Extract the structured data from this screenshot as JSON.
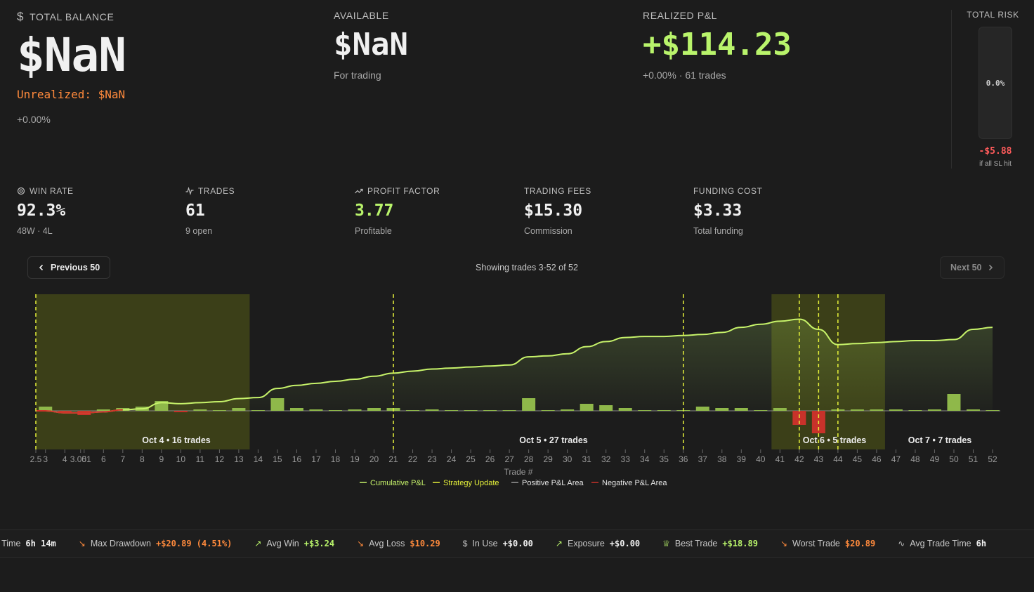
{
  "total_balance": {
    "label": "TOTAL BALANCE",
    "value": "$NaN",
    "unrealized": "Unrealized: $NaN",
    "change": "+0.00%"
  },
  "available": {
    "label": "AVAILABLE",
    "value": "$NaN",
    "sub": "For trading"
  },
  "realized": {
    "label": "REALIZED P&L",
    "value": "+$114.23",
    "sub": "+0.00% · 61 trades"
  },
  "risk": {
    "label": "TOTAL RISK",
    "percent": "0.0%",
    "sl_value": "-$5.88",
    "sl_hint": "if all SL hit"
  },
  "metrics": {
    "win_rate": {
      "label": "WIN RATE",
      "value": "92.3%",
      "sub": "48W · 4L"
    },
    "trades": {
      "label": "TRADES",
      "value": "61",
      "sub": "9 open"
    },
    "profit_factor": {
      "label": "PROFIT FACTOR",
      "value": "3.77",
      "sub": "Profitable"
    },
    "fees": {
      "label": "TRADING FEES",
      "value": "$15.30",
      "sub": "Commission"
    },
    "funding": {
      "label": "FUNDING COST",
      "value": "$3.33",
      "sub": "Total funding"
    }
  },
  "pager": {
    "prev": "Previous 50",
    "next": "Next 50",
    "showing": "Showing trades 3-52 of 52"
  },
  "colors": {
    "accent": "#b9f46b",
    "negative": "#ff5b5b",
    "warning": "#ff8a3c",
    "strategy": "#e6f23a"
  },
  "chart_data": {
    "type": "line",
    "xlabel": "Trade #",
    "x_ticks": [
      "2.5",
      "3",
      "3.001",
      "4",
      "5",
      "6",
      "7",
      "8",
      "9",
      "10",
      "11",
      "12",
      "13",
      "14",
      "15",
      "16",
      "17",
      "18",
      "19",
      "20",
      "21",
      "22",
      "23",
      "24",
      "25",
      "26",
      "27",
      "28",
      "29",
      "30",
      "31",
      "32",
      "33",
      "34",
      "35",
      "36",
      "37",
      "38",
      "39",
      "40",
      "41",
      "42",
      "43",
      "44",
      "45",
      "46",
      "47",
      "48",
      "49",
      "50",
      "51",
      "52"
    ],
    "legend": [
      "Cumulative P&L",
      "Strategy Update",
      "Positive P&L Area",
      "Negative P&L Area"
    ],
    "cumulative_pnl": {
      "x": [
        2.5,
        3,
        4,
        5,
        6,
        7,
        8,
        9,
        10,
        11,
        12,
        13,
        14,
        15,
        16,
        17,
        18,
        19,
        20,
        21,
        22,
        23,
        24,
        25,
        26,
        27,
        28,
        29,
        30,
        31,
        32,
        33,
        34,
        35,
        36,
        37,
        38,
        39,
        40,
        41,
        42,
        43,
        44,
        45,
        46,
        47,
        48,
        49,
        50,
        51,
        52
      ],
      "y": [
        0,
        0,
        -2,
        -2,
        -1,
        1,
        2,
        8,
        7,
        8,
        9,
        12,
        13,
        22,
        25,
        27,
        29,
        31,
        34,
        37,
        39,
        41,
        42,
        43,
        44,
        45,
        53,
        54,
        56,
        63,
        68,
        72,
        73,
        73,
        74,
        75,
        77,
        82,
        85,
        88,
        90,
        80,
        65,
        66,
        67,
        68,
        69,
        69,
        70,
        80,
        82
      ]
    },
    "trade_pnl": {
      "x": [
        3,
        4,
        5,
        6,
        7,
        8,
        9,
        10,
        11,
        12,
        13,
        14,
        15,
        16,
        17,
        18,
        19,
        20,
        21,
        22,
        23,
        24,
        25,
        26,
        27,
        28,
        29,
        30,
        31,
        32,
        33,
        34,
        35,
        36,
        37,
        38,
        39,
        40,
        41,
        42,
        43,
        44,
        45,
        46,
        47,
        48,
        49,
        50,
        51,
        52
      ],
      "y": [
        3,
        -1,
        -3,
        1,
        2,
        3,
        7,
        -1,
        1,
        0,
        2,
        0,
        9,
        2,
        1,
        0,
        1,
        2,
        2,
        0,
        1,
        0,
        0,
        0,
        0,
        9,
        0,
        1,
        5,
        4,
        2,
        0,
        0,
        0,
        3,
        2,
        2,
        0,
        2,
        -10,
        -16,
        1,
        1,
        1,
        1,
        0,
        1,
        12,
        1,
        0
      ]
    },
    "strategy_updates": [
      2.5,
      21,
      36,
      42,
      43,
      44
    ],
    "day_regions": [
      {
        "label": "Oct 4 • 16 trades",
        "from": 2.5,
        "to": 14,
        "highlight": true
      },
      {
        "label": "Oct 5 • 27 trades",
        "from": 14,
        "to": 41,
        "highlight": false
      },
      {
        "label": "Oct 6 • 5 trades",
        "from": 41,
        "to": 46,
        "highlight": true
      },
      {
        "label": "Oct 7 • 7 trades",
        "from": 46,
        "to": 52,
        "highlight": false
      }
    ]
  },
  "ticker": [
    {
      "icon": "clock-icon",
      "label": "Avg Trade Time",
      "value": "6h 14m",
      "tone": "neu",
      "clip": "ade Time"
    },
    {
      "icon": "trend-down-icon",
      "label": "Max Drawdown",
      "value": "+$20.89 (4.51%)",
      "tone": "neg"
    },
    {
      "icon": "trend-up-icon",
      "label": "Avg Win",
      "value": "+$3.24",
      "tone": "pos"
    },
    {
      "icon": "trend-down-icon",
      "label": "Avg Loss",
      "value": "$10.29",
      "tone": "neg"
    },
    {
      "icon": "dollar-icon",
      "label": "In Use",
      "value": "+$0.00",
      "tone": "neu"
    },
    {
      "icon": "trend-up-icon",
      "label": "Exposure",
      "value": "+$0.00",
      "tone": "neu"
    },
    {
      "icon": "trophy-icon",
      "label": "Best Trade",
      "value": "+$18.89",
      "tone": "pos"
    },
    {
      "icon": "trend-down-icon",
      "label": "Worst Trade",
      "value": "$20.89",
      "tone": "neg"
    },
    {
      "icon": "activity-icon",
      "label": "Avg Trade Time",
      "value": "6h",
      "tone": "neu"
    }
  ]
}
